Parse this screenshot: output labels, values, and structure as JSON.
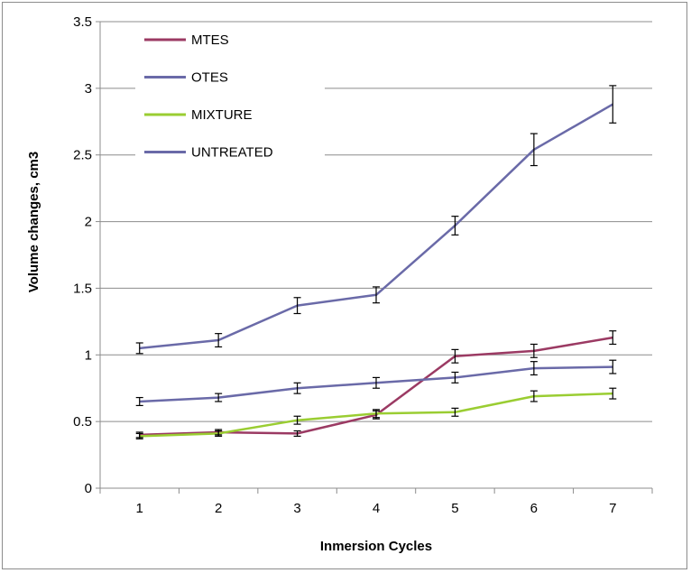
{
  "chart_data": {
    "type": "line",
    "title": "",
    "xlabel": "Inmersion Cycles",
    "ylabel": "Volume changes, cm3",
    "categories": [
      "1",
      "2",
      "3",
      "4",
      "5",
      "6",
      "7"
    ],
    "ylim": [
      0,
      3.5
    ],
    "yticks": [
      "0",
      "0.5",
      "1",
      "1.5",
      "2",
      "2.5",
      "3",
      "3.5"
    ],
    "grid": "horizontal",
    "legend_position": "top-left",
    "series": [
      {
        "name": "MTES",
        "color": "#9b3a63",
        "values": [
          0.4,
          0.42,
          0.41,
          0.55,
          0.99,
          1.03,
          1.13
        ],
        "errors": [
          0.02,
          0.02,
          0.02,
          0.03,
          0.05,
          0.05,
          0.05
        ]
      },
      {
        "name": "OTES",
        "color": "#6a6aa8",
        "values": [
          0.65,
          0.68,
          0.75,
          0.79,
          0.83,
          0.9,
          0.91
        ],
        "errors": [
          0.03,
          0.03,
          0.04,
          0.04,
          0.04,
          0.05,
          0.05
        ]
      },
      {
        "name": "MIXTURE",
        "color": "#9acd32",
        "values": [
          0.39,
          0.41,
          0.51,
          0.56,
          0.57,
          0.69,
          0.71
        ],
        "errors": [
          0.02,
          0.02,
          0.03,
          0.03,
          0.03,
          0.04,
          0.04
        ]
      },
      {
        "name": "UNTREATED",
        "color": "#6a6aa8",
        "values": [
          1.05,
          1.11,
          1.37,
          1.45,
          1.97,
          2.54,
          2.88
        ],
        "errors": [
          0.04,
          0.05,
          0.06,
          0.06,
          0.07,
          0.12,
          0.14
        ]
      }
    ]
  }
}
